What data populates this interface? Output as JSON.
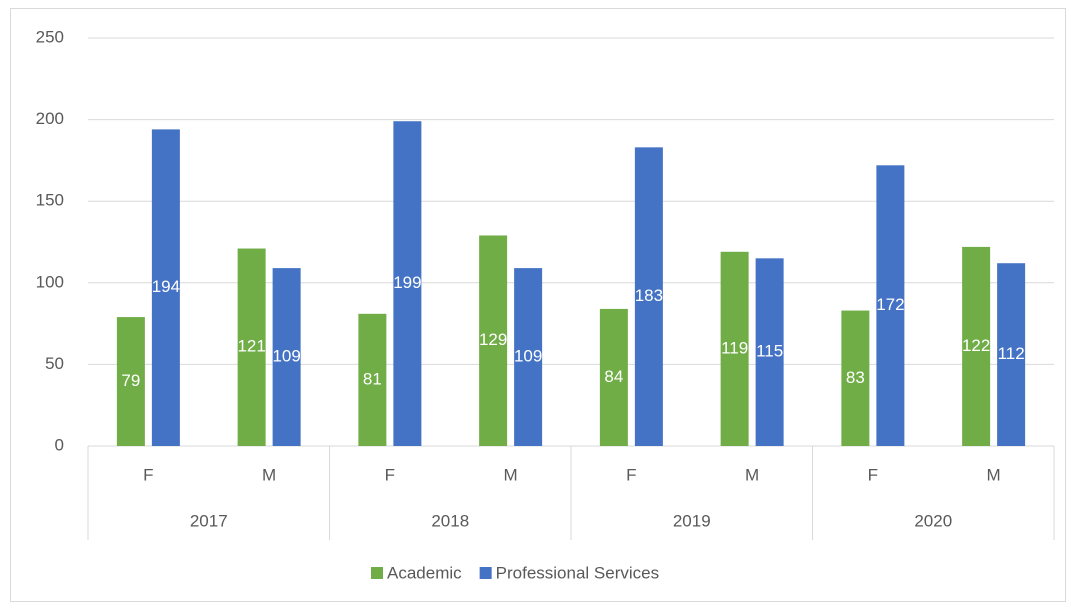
{
  "chart_data": {
    "type": "bar",
    "categories": [
      "F",
      "M",
      "F",
      "M",
      "F",
      "M",
      "F",
      "M"
    ],
    "groups": [
      "2017",
      "2018",
      "2019",
      "2020"
    ],
    "series": [
      {
        "name": "Academic",
        "color": "#70ad47",
        "values": [
          79,
          121,
          81,
          129,
          84,
          119,
          83,
          122
        ]
      },
      {
        "name": "Professional Services",
        "color": "#4472c4",
        "values": [
          194,
          109,
          199,
          109,
          183,
          115,
          172,
          112
        ]
      }
    ],
    "ylim": [
      0,
      250
    ],
    "yticks": [
      0,
      50,
      100,
      150,
      200,
      250
    ],
    "grid": true,
    "legend": "bottom"
  }
}
